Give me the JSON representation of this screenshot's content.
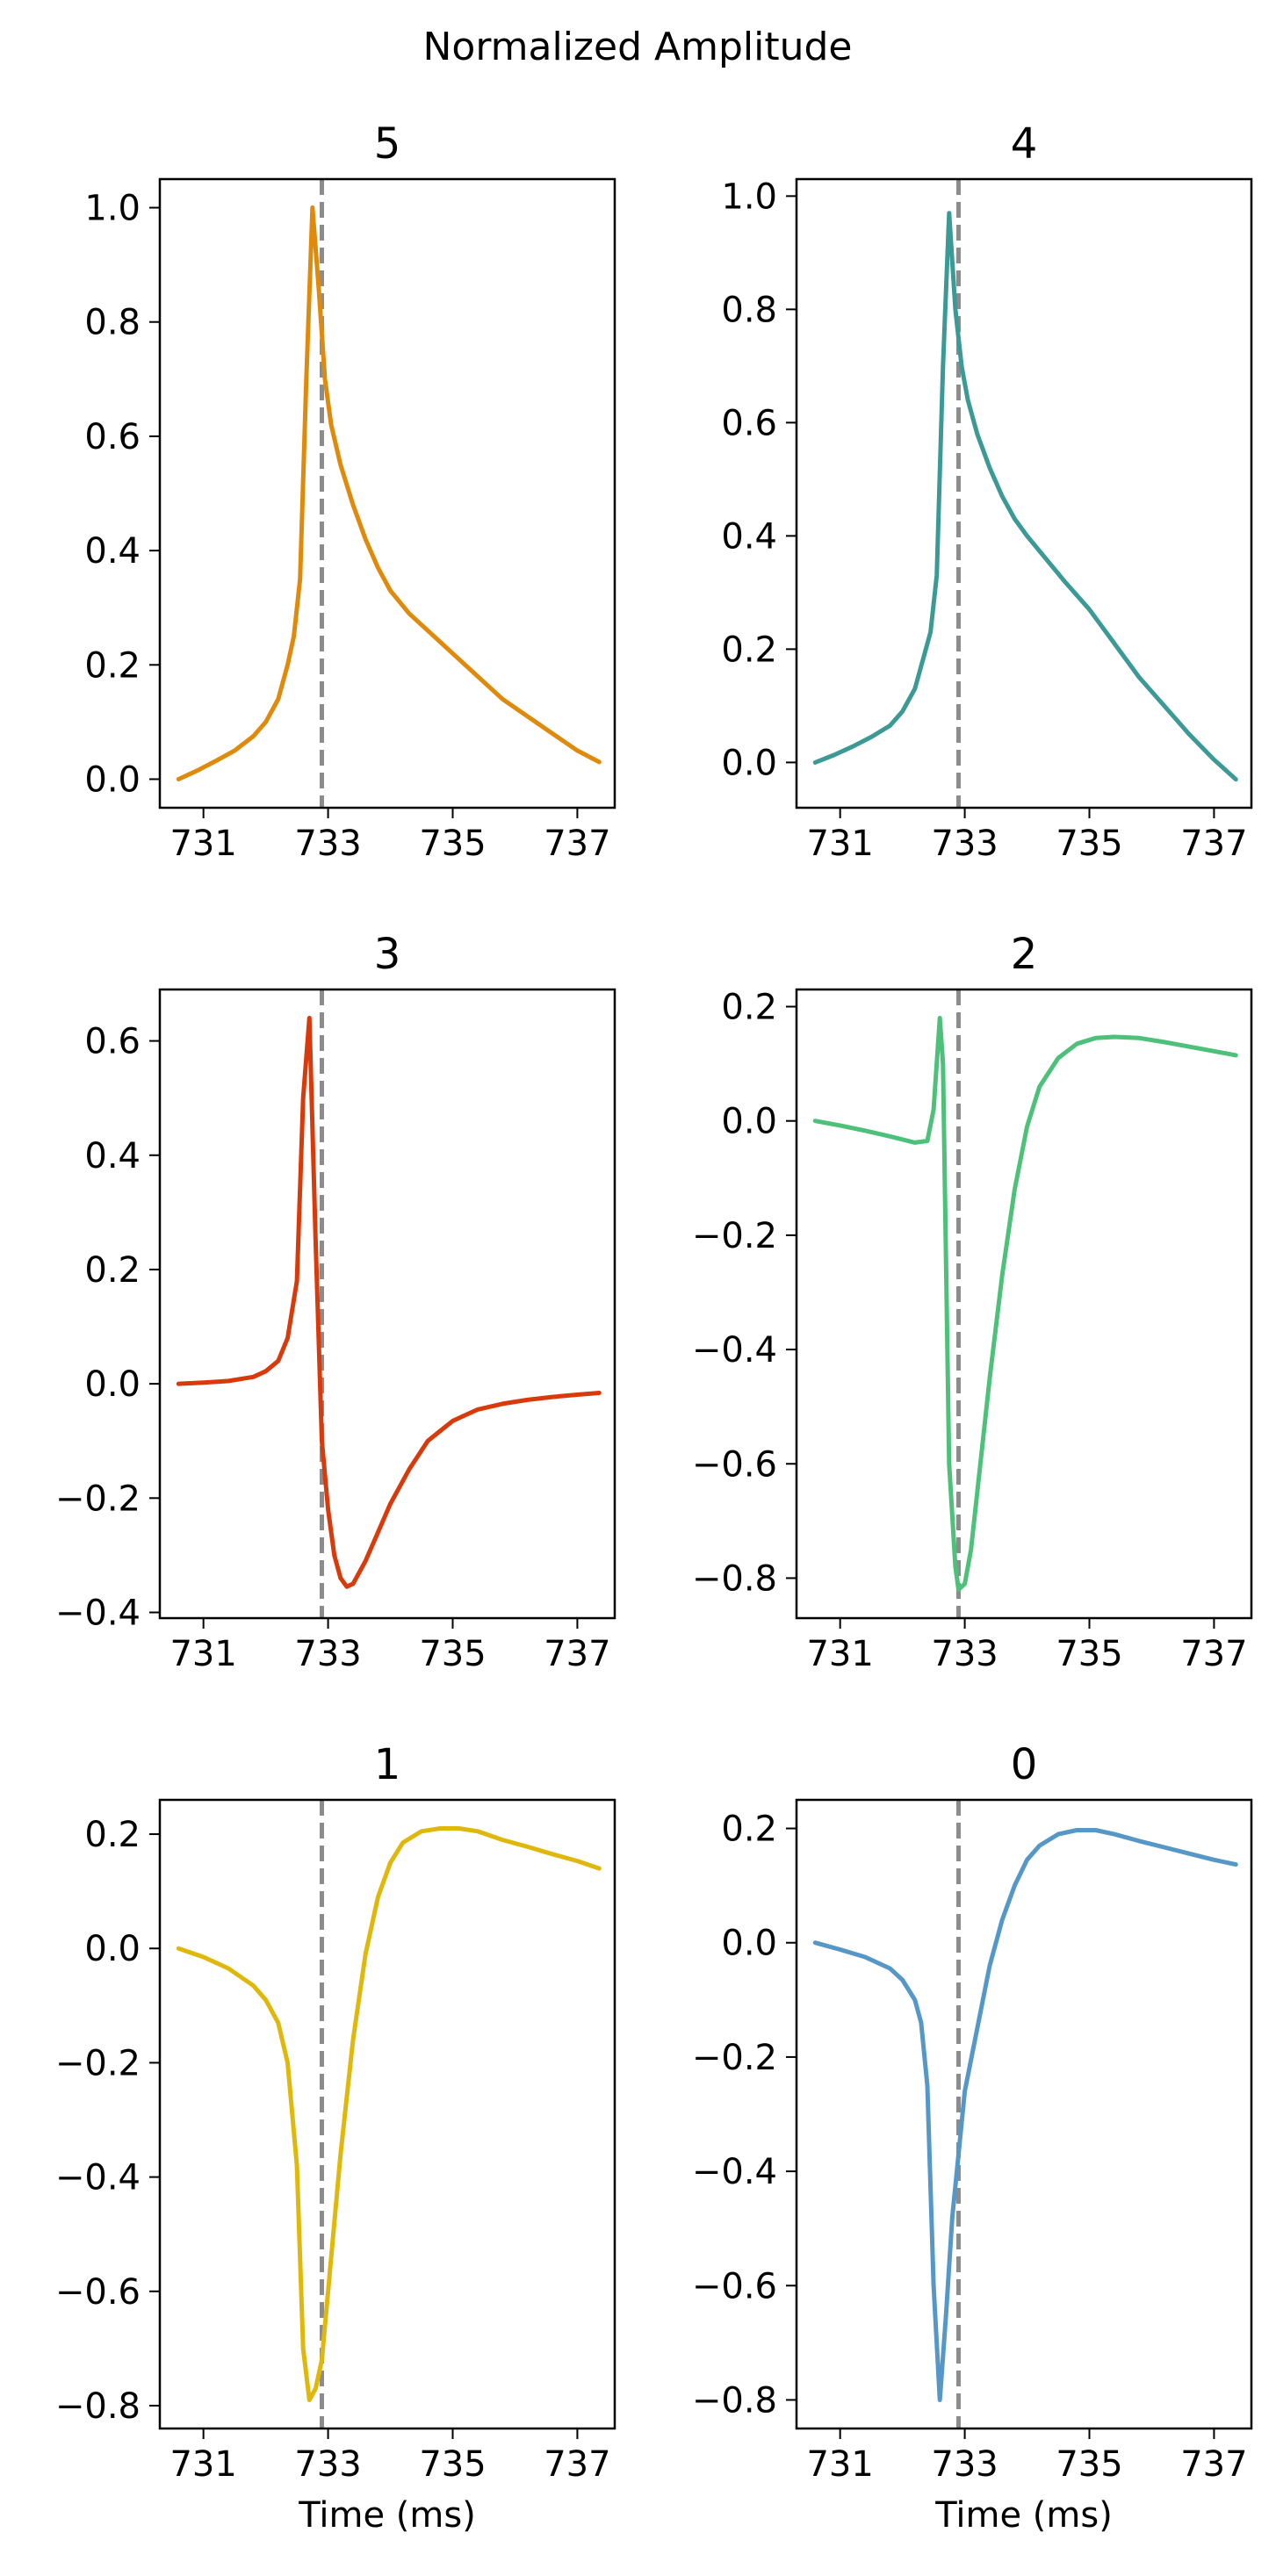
{
  "figure": {
    "title": "Normalized Amplitude"
  },
  "styles": {
    "marker_color": "#8c8c8c",
    "axis_color": "#000000"
  },
  "chart_data": [
    {
      "type": "line",
      "title": "5",
      "xlabel": "",
      "ylabel": "",
      "color": "#e08a0c",
      "marker_x": 732.9,
      "xlim": [
        730.3,
        737.6
      ],
      "ylim": [
        -0.05,
        1.05
      ],
      "xticks": [
        731,
        733,
        735,
        737
      ],
      "xtick_labels": [
        "731",
        "733",
        "735",
        "737"
      ],
      "yticks": [
        0.0,
        0.2,
        0.4,
        0.6,
        0.8,
        1.0
      ],
      "ytick_labels": [
        "0.0",
        "0.2",
        "0.4",
        "0.6",
        "0.8",
        "1.0"
      ],
      "x": [
        730.6,
        730.9,
        731.2,
        731.5,
        731.8,
        732.0,
        732.2,
        732.35,
        732.45,
        732.55,
        732.65,
        732.75,
        732.85,
        732.95,
        733.05,
        733.2,
        733.4,
        733.6,
        733.8,
        734.0,
        734.3,
        734.6,
        735.0,
        735.4,
        735.8,
        736.2,
        736.6,
        737.0,
        737.35
      ],
      "y": [
        0.0,
        0.015,
        0.032,
        0.05,
        0.075,
        0.1,
        0.14,
        0.2,
        0.25,
        0.35,
        0.7,
        1.0,
        0.86,
        0.7,
        0.62,
        0.55,
        0.48,
        0.42,
        0.37,
        0.33,
        0.29,
        0.26,
        0.22,
        0.18,
        0.14,
        0.11,
        0.08,
        0.05,
        0.03
      ]
    },
    {
      "type": "line",
      "title": "4",
      "xlabel": "",
      "ylabel": "",
      "color": "#3c9a96",
      "marker_x": 732.9,
      "xlim": [
        730.3,
        737.6
      ],
      "ylim": [
        -0.08,
        1.03
      ],
      "xticks": [
        731,
        733,
        735,
        737
      ],
      "xtick_labels": [
        "731",
        "733",
        "735",
        "737"
      ],
      "yticks": [
        0.0,
        0.2,
        0.4,
        0.6,
        0.8,
        1.0
      ],
      "ytick_labels": [
        "0.0",
        "0.2",
        "0.4",
        "0.6",
        "0.8",
        "1.0"
      ],
      "x": [
        730.6,
        730.9,
        731.2,
        731.5,
        731.8,
        732.0,
        732.2,
        732.35,
        732.45,
        732.55,
        732.65,
        732.75,
        732.85,
        732.95,
        733.05,
        733.2,
        733.4,
        733.6,
        733.8,
        734.0,
        734.3,
        734.6,
        735.0,
        735.4,
        735.8,
        736.2,
        736.6,
        737.0,
        737.35
      ],
      "y": [
        0.0,
        0.013,
        0.028,
        0.045,
        0.065,
        0.09,
        0.13,
        0.19,
        0.23,
        0.33,
        0.7,
        0.97,
        0.8,
        0.7,
        0.64,
        0.58,
        0.52,
        0.47,
        0.43,
        0.4,
        0.36,
        0.32,
        0.27,
        0.21,
        0.15,
        0.1,
        0.05,
        0.005,
        -0.03
      ]
    },
    {
      "type": "line",
      "title": "3",
      "xlabel": "",
      "ylabel": "",
      "color": "#d83a0c",
      "marker_x": 732.9,
      "xlim": [
        730.3,
        737.6
      ],
      "ylim": [
        -0.41,
        0.69
      ],
      "xticks": [
        731,
        733,
        735,
        737
      ],
      "xtick_labels": [
        "731",
        "733",
        "735",
        "737"
      ],
      "yticks": [
        -0.4,
        -0.2,
        0.0,
        0.2,
        0.4,
        0.6
      ],
      "ytick_labels": [
        "−0.4",
        "−0.2",
        "0.0",
        "0.2",
        "0.4",
        "0.6"
      ],
      "x": [
        730.6,
        731.0,
        731.4,
        731.8,
        732.0,
        732.2,
        732.35,
        732.5,
        732.6,
        732.7,
        732.8,
        732.9,
        733.0,
        733.1,
        733.2,
        733.3,
        733.4,
        733.6,
        733.8,
        734.0,
        734.3,
        734.6,
        735.0,
        735.4,
        735.8,
        736.2,
        736.6,
        737.0,
        737.35
      ],
      "y": [
        0.0,
        0.002,
        0.005,
        0.012,
        0.022,
        0.04,
        0.08,
        0.18,
        0.5,
        0.64,
        0.25,
        -0.1,
        -0.22,
        -0.3,
        -0.34,
        -0.355,
        -0.35,
        -0.31,
        -0.26,
        -0.21,
        -0.15,
        -0.1,
        -0.065,
        -0.045,
        -0.035,
        -0.028,
        -0.023,
        -0.019,
        -0.016
      ]
    },
    {
      "type": "line",
      "title": "2",
      "xlabel": "",
      "ylabel": "",
      "color": "#4dc07a",
      "marker_x": 732.9,
      "xlim": [
        730.3,
        737.6
      ],
      "ylim": [
        -0.87,
        0.23
      ],
      "xticks": [
        731,
        733,
        735,
        737
      ],
      "xtick_labels": [
        "731",
        "733",
        "735",
        "737"
      ],
      "yticks": [
        -0.8,
        -0.6,
        -0.4,
        -0.2,
        0.0,
        0.2
      ],
      "ytick_labels": [
        "−0.8",
        "−0.6",
        "−0.4",
        "−0.2",
        "0.0",
        "0.2"
      ],
      "x": [
        730.6,
        731.0,
        731.4,
        731.8,
        732.2,
        732.4,
        732.5,
        732.6,
        732.65,
        732.75,
        732.85,
        732.9,
        733.0,
        733.1,
        733.2,
        733.4,
        733.6,
        733.8,
        734.0,
        734.2,
        734.5,
        734.8,
        735.1,
        735.4,
        735.8,
        736.2,
        736.6,
        737.0,
        737.35
      ],
      "y": [
        0.0,
        -0.008,
        -0.017,
        -0.027,
        -0.038,
        -0.035,
        0.02,
        0.18,
        0.1,
        -0.6,
        -0.78,
        -0.82,
        -0.81,
        -0.75,
        -0.65,
        -0.45,
        -0.27,
        -0.12,
        -0.01,
        0.06,
        0.11,
        0.135,
        0.145,
        0.147,
        0.145,
        0.138,
        0.13,
        0.122,
        0.115
      ]
    },
    {
      "type": "line",
      "title": "1",
      "xlabel": "Time (ms)",
      "ylabel": "",
      "color": "#e0b80c",
      "marker_x": 732.9,
      "xlim": [
        730.3,
        737.6
      ],
      "ylim": [
        -0.84,
        0.26
      ],
      "xticks": [
        731,
        733,
        735,
        737
      ],
      "xtick_labels": [
        "731",
        "733",
        "735",
        "737"
      ],
      "yticks": [
        -0.8,
        -0.6,
        -0.4,
        -0.2,
        0.0,
        0.2
      ],
      "ytick_labels": [
        "−0.8",
        "−0.6",
        "−0.4",
        "−0.2",
        "0.0",
        "0.2"
      ],
      "x": [
        730.6,
        731.0,
        731.4,
        731.8,
        732.0,
        732.2,
        732.35,
        732.5,
        732.6,
        732.7,
        732.8,
        732.9,
        733.0,
        733.1,
        733.2,
        733.4,
        733.6,
        733.8,
        734.0,
        734.2,
        734.5,
        734.8,
        735.1,
        735.4,
        735.8,
        736.2,
        736.6,
        737.0,
        737.35
      ],
      "y": [
        0.0,
        -0.015,
        -0.035,
        -0.065,
        -0.09,
        -0.13,
        -0.2,
        -0.38,
        -0.7,
        -0.79,
        -0.77,
        -0.72,
        -0.6,
        -0.48,
        -0.36,
        -0.16,
        -0.01,
        0.09,
        0.15,
        0.185,
        0.205,
        0.21,
        0.21,
        0.205,
        0.19,
        0.178,
        0.165,
        0.153,
        0.14
      ]
    },
    {
      "type": "line",
      "title": "0",
      "xlabel": "Time (ms)",
      "ylabel": "",
      "color": "#5598c8",
      "marker_x": 732.9,
      "xlim": [
        730.3,
        737.6
      ],
      "ylim": [
        -0.85,
        0.25
      ],
      "xticks": [
        731,
        733,
        735,
        737
      ],
      "xtick_labels": [
        "731",
        "733",
        "735",
        "737"
      ],
      "yticks": [
        -0.8,
        -0.6,
        -0.4,
        -0.2,
        0.0,
        0.2
      ],
      "ytick_labels": [
        "−0.8",
        "−0.6",
        "−0.4",
        "−0.2",
        "0.0",
        "0.2"
      ],
      "x": [
        730.6,
        731.0,
        731.4,
        731.8,
        732.0,
        732.2,
        732.3,
        732.4,
        732.5,
        732.6,
        732.7,
        732.8,
        732.9,
        733.0,
        733.2,
        733.4,
        733.6,
        733.8,
        734.0,
        734.2,
        734.5,
        734.8,
        735.1,
        735.4,
        735.8,
        736.2,
        736.6,
        737.0,
        737.35
      ],
      "y": [
        0.0,
        -0.012,
        -0.025,
        -0.045,
        -0.065,
        -0.1,
        -0.14,
        -0.25,
        -0.6,
        -0.8,
        -0.65,
        -0.48,
        -0.37,
        -0.26,
        -0.15,
        -0.04,
        0.04,
        0.1,
        0.145,
        0.17,
        0.19,
        0.197,
        0.197,
        0.19,
        0.178,
        0.167,
        0.156,
        0.145,
        0.137
      ]
    }
  ]
}
